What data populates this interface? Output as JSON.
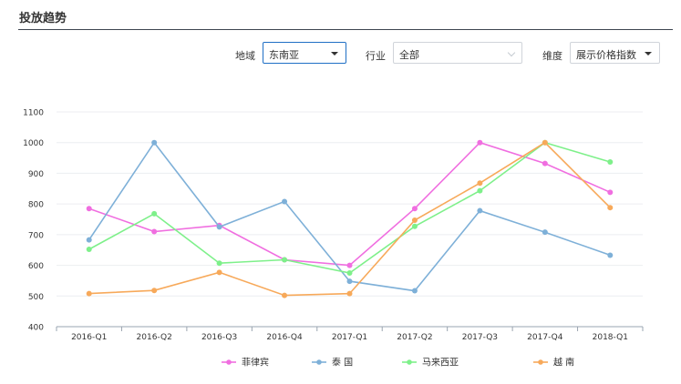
{
  "header": {
    "title": "投放趋势"
  },
  "filters": {
    "region": {
      "label": "地域",
      "value": "东南亚"
    },
    "industry": {
      "label": "行业",
      "value": "全部"
    },
    "dimension": {
      "label": "维度",
      "value": "展示价格指数"
    }
  },
  "colors": {
    "philippines": "#f06ee0",
    "thailand": "#7eb0d8",
    "malaysia": "#7ef08a",
    "vietnam": "#f7a95a"
  },
  "chart_data": {
    "type": "line",
    "categories": [
      "2016-Q1",
      "2016-Q2",
      "2016-Q3",
      "2016-Q4",
      "2017-Q1",
      "2017-Q2",
      "2017-Q3",
      "2017-Q4",
      "2018-Q1"
    ],
    "ylim": [
      400,
      1100
    ],
    "yticks": [
      400,
      500,
      600,
      700,
      800,
      900,
      1000,
      1100
    ],
    "grid": true,
    "legend_position": "bottom",
    "series": [
      {
        "key": "philippines",
        "name": "菲律宾",
        "color": "#f06ee0",
        "values": [
          785,
          710,
          730,
          618,
          600,
          785,
          1000,
          932,
          838
        ]
      },
      {
        "key": "thailand",
        "name": "泰 国",
        "color": "#7eb0d8",
        "values": [
          683,
          1000,
          725,
          808,
          548,
          517,
          778,
          708,
          633
        ]
      },
      {
        "key": "malaysia",
        "name": "马来西亚",
        "color": "#7ef08a",
        "values": [
          652,
          768,
          607,
          618,
          575,
          727,
          843,
          1000,
          937
        ]
      },
      {
        "key": "vietnam",
        "name": "越 南",
        "color": "#f7a95a",
        "values": [
          508,
          518,
          577,
          502,
          508,
          747,
          868,
          1000,
          788
        ]
      }
    ]
  }
}
